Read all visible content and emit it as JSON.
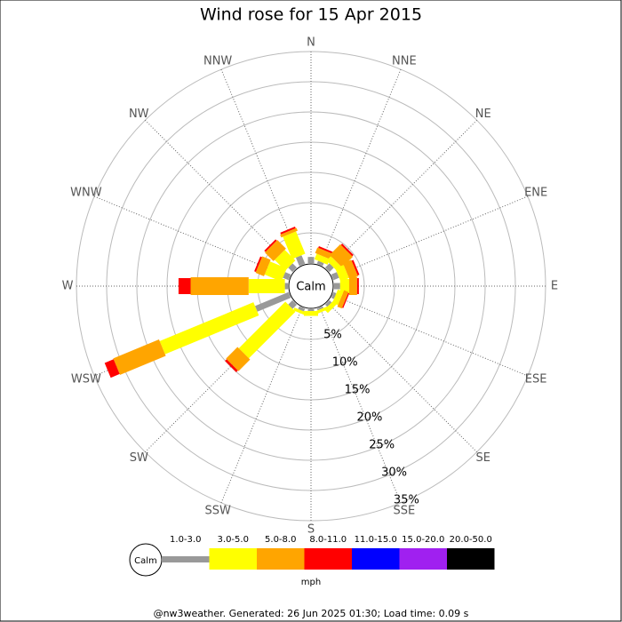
{
  "chart_data": {
    "type": "windrose",
    "title": "Wind rose for 15 Apr 2015",
    "calm_label": "Calm",
    "directions": [
      "N",
      "NNE",
      "NE",
      "ENE",
      "E",
      "ESE",
      "SE",
      "SSE",
      "S",
      "SSW",
      "SW",
      "WSW",
      "W",
      "WNW",
      "NW",
      "NNW"
    ],
    "series": [
      {
        "name": "1.0-3.0",
        "color": "#999999",
        "values": [
          1,
          0.5,
          1,
          1,
          1,
          0.5,
          0.5,
          0.3,
          0.3,
          0.5,
          1,
          6,
          0.5,
          1,
          1,
          1.5
        ]
      },
      {
        "name": "3.0-5.0",
        "color": "#ffff00",
        "values": [
          0,
          1,
          1,
          1.5,
          1.5,
          1,
          0.8,
          0.5,
          0.8,
          0.5,
          10.9,
          16.8,
          6,
          3,
          2.5,
          4
        ]
      },
      {
        "name": "5.0-8.0",
        "color": "#ffa500",
        "values": [
          0,
          1,
          2.5,
          1.5,
          1.3,
          0.8,
          0,
          0,
          0,
          0,
          2.7,
          8.2,
          9.6,
          1.5,
          2,
          0.5
        ]
      },
      {
        "name": "8.0-11.0",
        "color": "#ff0000",
        "values": [
          0,
          0.3,
          0.3,
          0.3,
          0.3,
          0.2,
          0,
          0,
          0,
          0,
          0.4,
          1.6,
          2,
          0.3,
          0.3,
          0.3
        ]
      },
      {
        "name": "11.0-15.0",
        "color": "#0000ff",
        "values": [
          0,
          0,
          0,
          0,
          0,
          0,
          0,
          0,
          0,
          0,
          0,
          0,
          0,
          0,
          0,
          0
        ]
      },
      {
        "name": "15.0-20.0",
        "color": "#a020f0",
        "values": [
          0,
          0,
          0,
          0,
          0,
          0,
          0,
          0,
          0,
          0,
          0,
          0,
          0,
          0,
          0,
          0
        ]
      },
      {
        "name": "20.0-50.0",
        "color": "#000000",
        "values": [
          0,
          0,
          0,
          0,
          0,
          0,
          0,
          0,
          0,
          0,
          0,
          0,
          0,
          0,
          0,
          0
        ]
      }
    ],
    "rlim": [
      0,
      35
    ],
    "rticks": [
      {
        "value": 5,
        "label": "5%"
      },
      {
        "value": 10,
        "label": "10%"
      },
      {
        "value": 15,
        "label": "15%"
      },
      {
        "value": 20,
        "label": "20%"
      },
      {
        "value": 25,
        "label": "25%"
      },
      {
        "value": 30,
        "label": "30%"
      },
      {
        "value": 35,
        "label": "35%"
      }
    ],
    "legend_units": "mph",
    "footer": "@nw3weather. Generated: 26 Jun 2025 01:30; Load time: 0.09 s"
  }
}
